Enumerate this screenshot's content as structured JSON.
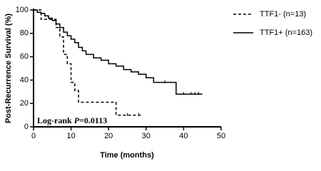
{
  "chart_data": {
    "type": "step",
    "y_label": "Post-Recurrence Survival (%)",
    "x_label": "Time (months)",
    "annotation": {
      "prefix": "Log-rank ",
      "italic": "P",
      "suffix": "=0.0113"
    },
    "xlim": [
      0,
      50
    ],
    "xticks": [
      0,
      10,
      20,
      30,
      40,
      50
    ],
    "ylim": [
      0,
      100
    ],
    "yticks": [
      0,
      20,
      40,
      60,
      80,
      100
    ],
    "series": [
      {
        "name": "TTF1- (n=13)",
        "color": "#000000",
        "dash": true,
        "x": [
          0,
          2,
          2,
          6,
          6,
          7,
          7,
          8,
          8,
          9,
          9,
          10,
          10,
          11,
          11,
          12,
          12,
          22,
          22,
          29
        ],
        "values": [
          100,
          100,
          92,
          92,
          85,
          85,
          77,
          77,
          62,
          62,
          54,
          54,
          38,
          38,
          31,
          31,
          21,
          21,
          10,
          10
        ],
        "censored_x": [
          25,
          28
        ],
        "censored_y": [
          10,
          10
        ]
      },
      {
        "name": "TTF1+ (n=163)",
        "color": "#000000",
        "dash": false,
        "x": [
          0,
          1,
          1,
          2,
          2,
          3,
          3,
          4,
          4,
          5,
          5,
          6,
          6,
          7,
          7,
          8,
          8,
          9,
          9,
          10,
          10,
          11,
          11,
          12,
          12,
          13,
          13,
          14,
          14,
          16,
          16,
          18,
          18,
          20,
          20,
          22,
          22,
          24,
          24,
          26,
          26,
          28,
          28,
          30,
          30,
          32,
          32,
          38,
          38,
          45
        ],
        "values": [
          100,
          100,
          98,
          98,
          97,
          97,
          95,
          95,
          93,
          93,
          91,
          91,
          88,
          88,
          85,
          85,
          81,
          81,
          78,
          78,
          75,
          75,
          72,
          72,
          68,
          68,
          65,
          65,
          62,
          62,
          59,
          59,
          57,
          57,
          54,
          54,
          52,
          52,
          49,
          49,
          47,
          47,
          45,
          45,
          42,
          42,
          38,
          38,
          28,
          28
        ],
        "censored_x": [
          35,
          40,
          42,
          43,
          44
        ],
        "censored_y": [
          38,
          28,
          28,
          28,
          28
        ]
      }
    ]
  }
}
